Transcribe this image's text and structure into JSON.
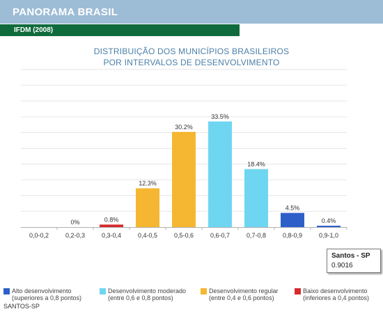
{
  "header": {
    "title": "PANORAMA BRASIL",
    "subtitle": "IFDM (2008)"
  },
  "chart_title": {
    "line1": "DISTRIBUIÇÃO DOS MUNICÍPIOS BRASILEIROS",
    "line2": "POR INTERVALOS DE DESENVOLVIMENTO"
  },
  "chart_data": {
    "type": "bar",
    "categories": [
      "0,0-0,2",
      "0,2-0,3",
      "0,3-0,4",
      "0,4-0,5",
      "0,5-0,6",
      "0,6-0,7",
      "0,7-0,8",
      "0,8-0,9",
      "0,9-1,0"
    ],
    "values": [
      null,
      0,
      0.8,
      12.3,
      30.2,
      33.5,
      18.4,
      4.5,
      0.4
    ],
    "value_labels": [
      "",
      "0%",
      "0.8%",
      "12.3%",
      "30.2%",
      "33.5%",
      "18.4%",
      "4.5%",
      "0.4%"
    ],
    "bar_groups": [
      "",
      "",
      "baixo",
      "regular",
      "regular",
      "moderado",
      "moderado",
      "alto",
      "alto"
    ],
    "ylim": [
      0,
      50
    ],
    "grid": true,
    "xlabel": "",
    "ylabel": ""
  },
  "colors": {
    "alto": "#2e5fc9",
    "moderado": "#6fd6f2",
    "regular": "#f5b731",
    "baixo": "#d62b2b",
    "grid": "#e6e6e6",
    "axis": "#b0b0b0"
  },
  "tooltip": {
    "name": "Santos - SP",
    "value": "0.9016"
  },
  "legend": [
    {
      "key": "alto",
      "line1": "Alto desenvolvimento",
      "line2": "(superiores a 0,8 pontos)"
    },
    {
      "key": "moderado",
      "line1": "Desenvolvimento moderado",
      "line2": "(entre 0,6 e 0,8 pontos)"
    },
    {
      "key": "regular",
      "line1": "Desenvolvimento regular",
      "line2": "(entre 0,4 e 0,6 pontos)"
    },
    {
      "key": "baixo",
      "line1": "Baixo desenvolvimento",
      "line2": "(inferiores a 0,4 pontos)"
    }
  ],
  "footer": {
    "label": "SANTOS-SP"
  }
}
